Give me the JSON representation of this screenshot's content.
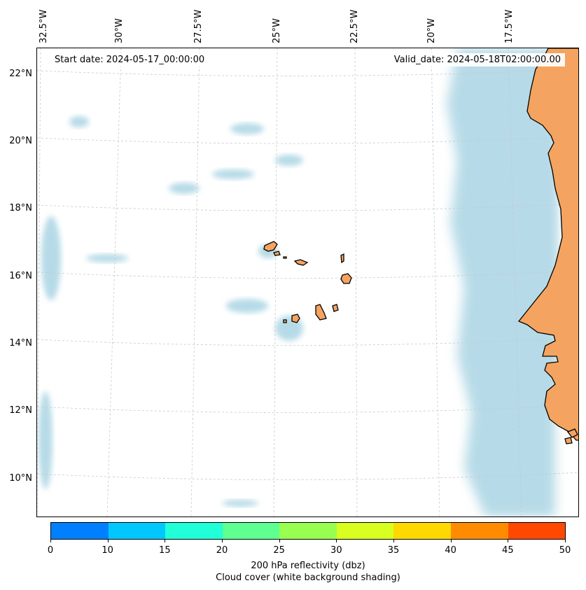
{
  "map": {
    "start_date": "Start date: 2024-05-17_00:00:00",
    "valid_date": "Valid_date: 2024-05-18T02:00:00.00",
    "lon_labels": [
      "32.5°W",
      "30°W",
      "27.5°W",
      "25°W",
      "22.5°W",
      "20°W",
      "17.5°W"
    ],
    "lat_labels": [
      "22°N",
      "20°N",
      "18°N",
      "16°N",
      "14°N",
      "12°N",
      "10°N"
    ],
    "land_color": "#f4a460",
    "cloud_color": "#a9d4e3",
    "coast_color": "#000000"
  },
  "colorbar": {
    "ticks": [
      "0",
      "10",
      "15",
      "20",
      "25",
      "30",
      "35",
      "40",
      "45",
      "50"
    ],
    "colors": [
      "#0080ff",
      "#00c8ff",
      "#20ffd8",
      "#5fff90",
      "#98ff50",
      "#d8ff20",
      "#ffd800",
      "#ff8c00",
      "#ff4800"
    ],
    "label_line1": "200 hPa reflectivity (dbz)",
    "label_line2": "Cloud cover (white background shading)"
  }
}
